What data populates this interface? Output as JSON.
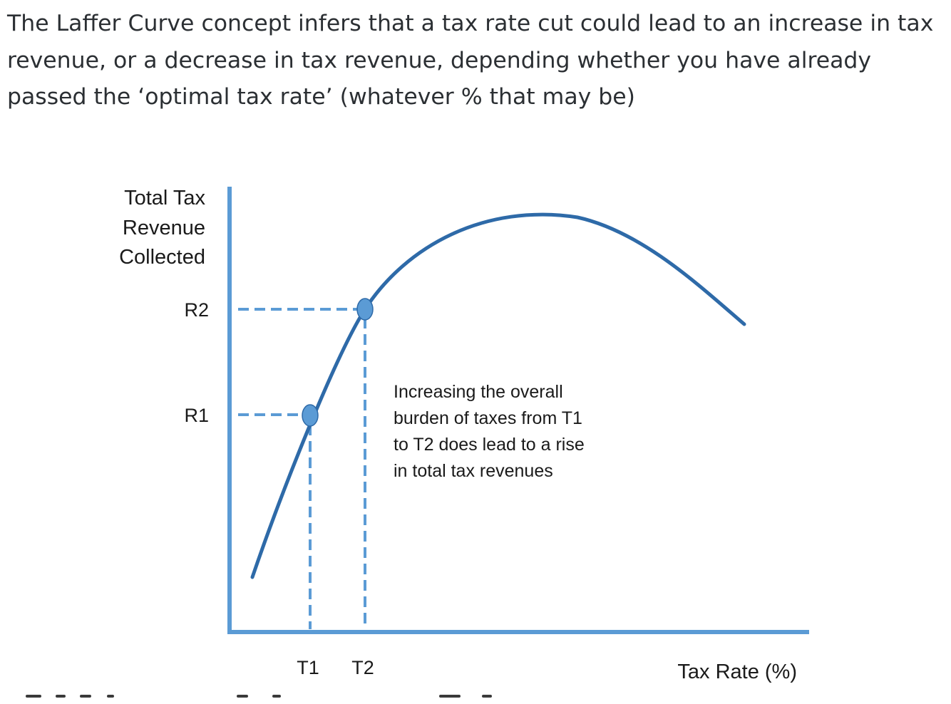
{
  "intro_text": "The Laffer Curve concept infers that a tax rate cut could lead to an increase in tax revenue, or a decrease in tax revenue, depending whether you have already passed the ‘optimal tax rate’ (whatever % that may be)",
  "diagram": {
    "y_axis_label_lines": [
      "Total Tax",
      "Revenue",
      "Collected"
    ],
    "x_axis_label": "Tax Rate (%)",
    "y_ticks": [
      "R2",
      "R1"
    ],
    "x_ticks": [
      "T1",
      "T2"
    ],
    "annotation_lines": [
      "Increasing the overall",
      "burden of taxes from T1",
      "to T2 does lead to a rise",
      "in total tax revenues"
    ],
    "colors": {
      "axis": "#5b9bd5",
      "curve": "#2e6aa8",
      "guide": "#5b9bd5",
      "point": "#5b9bd5"
    }
  }
}
